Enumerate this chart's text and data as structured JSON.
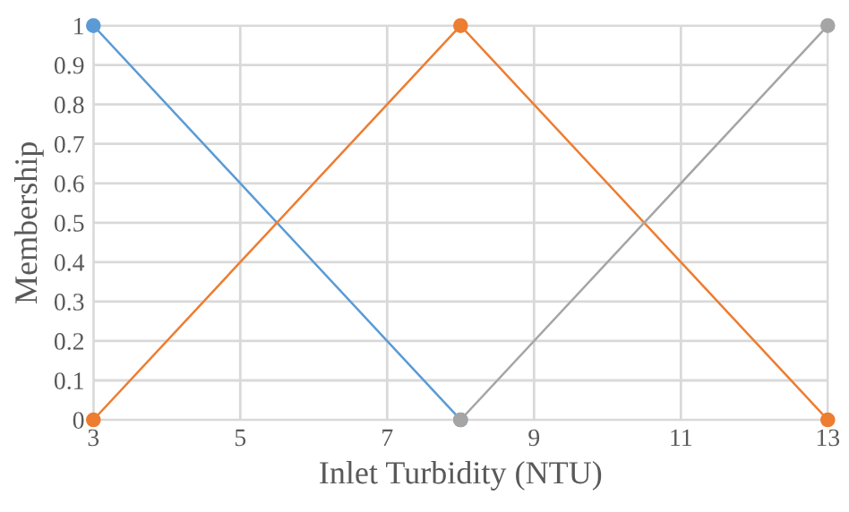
{
  "chart_data": {
    "type": "line",
    "xlabel": "Inlet Turbidity (NTU)",
    "ylabel": "Membership",
    "series": [
      {
        "color": "#5b9bd5",
        "x": [
          3,
          8
        ],
        "values": [
          1,
          0
        ]
      },
      {
        "color": "#ed7d31",
        "x": [
          3,
          8,
          13
        ],
        "values": [
          0,
          1,
          0
        ]
      },
      {
        "color": "#a5a5a5",
        "x": [
          8,
          13
        ],
        "values": [
          0,
          1
        ]
      }
    ],
    "xlim": [
      3,
      13
    ],
    "xticks": [
      3,
      5,
      7,
      9,
      11,
      13
    ],
    "ylim": [
      0,
      1
    ],
    "yticks": [
      0,
      0.1,
      0.2,
      0.3,
      0.4,
      0.5,
      0.6,
      0.7,
      0.8,
      0.9,
      1
    ],
    "grid": true,
    "marker": "circle",
    "line_style": "solid"
  }
}
